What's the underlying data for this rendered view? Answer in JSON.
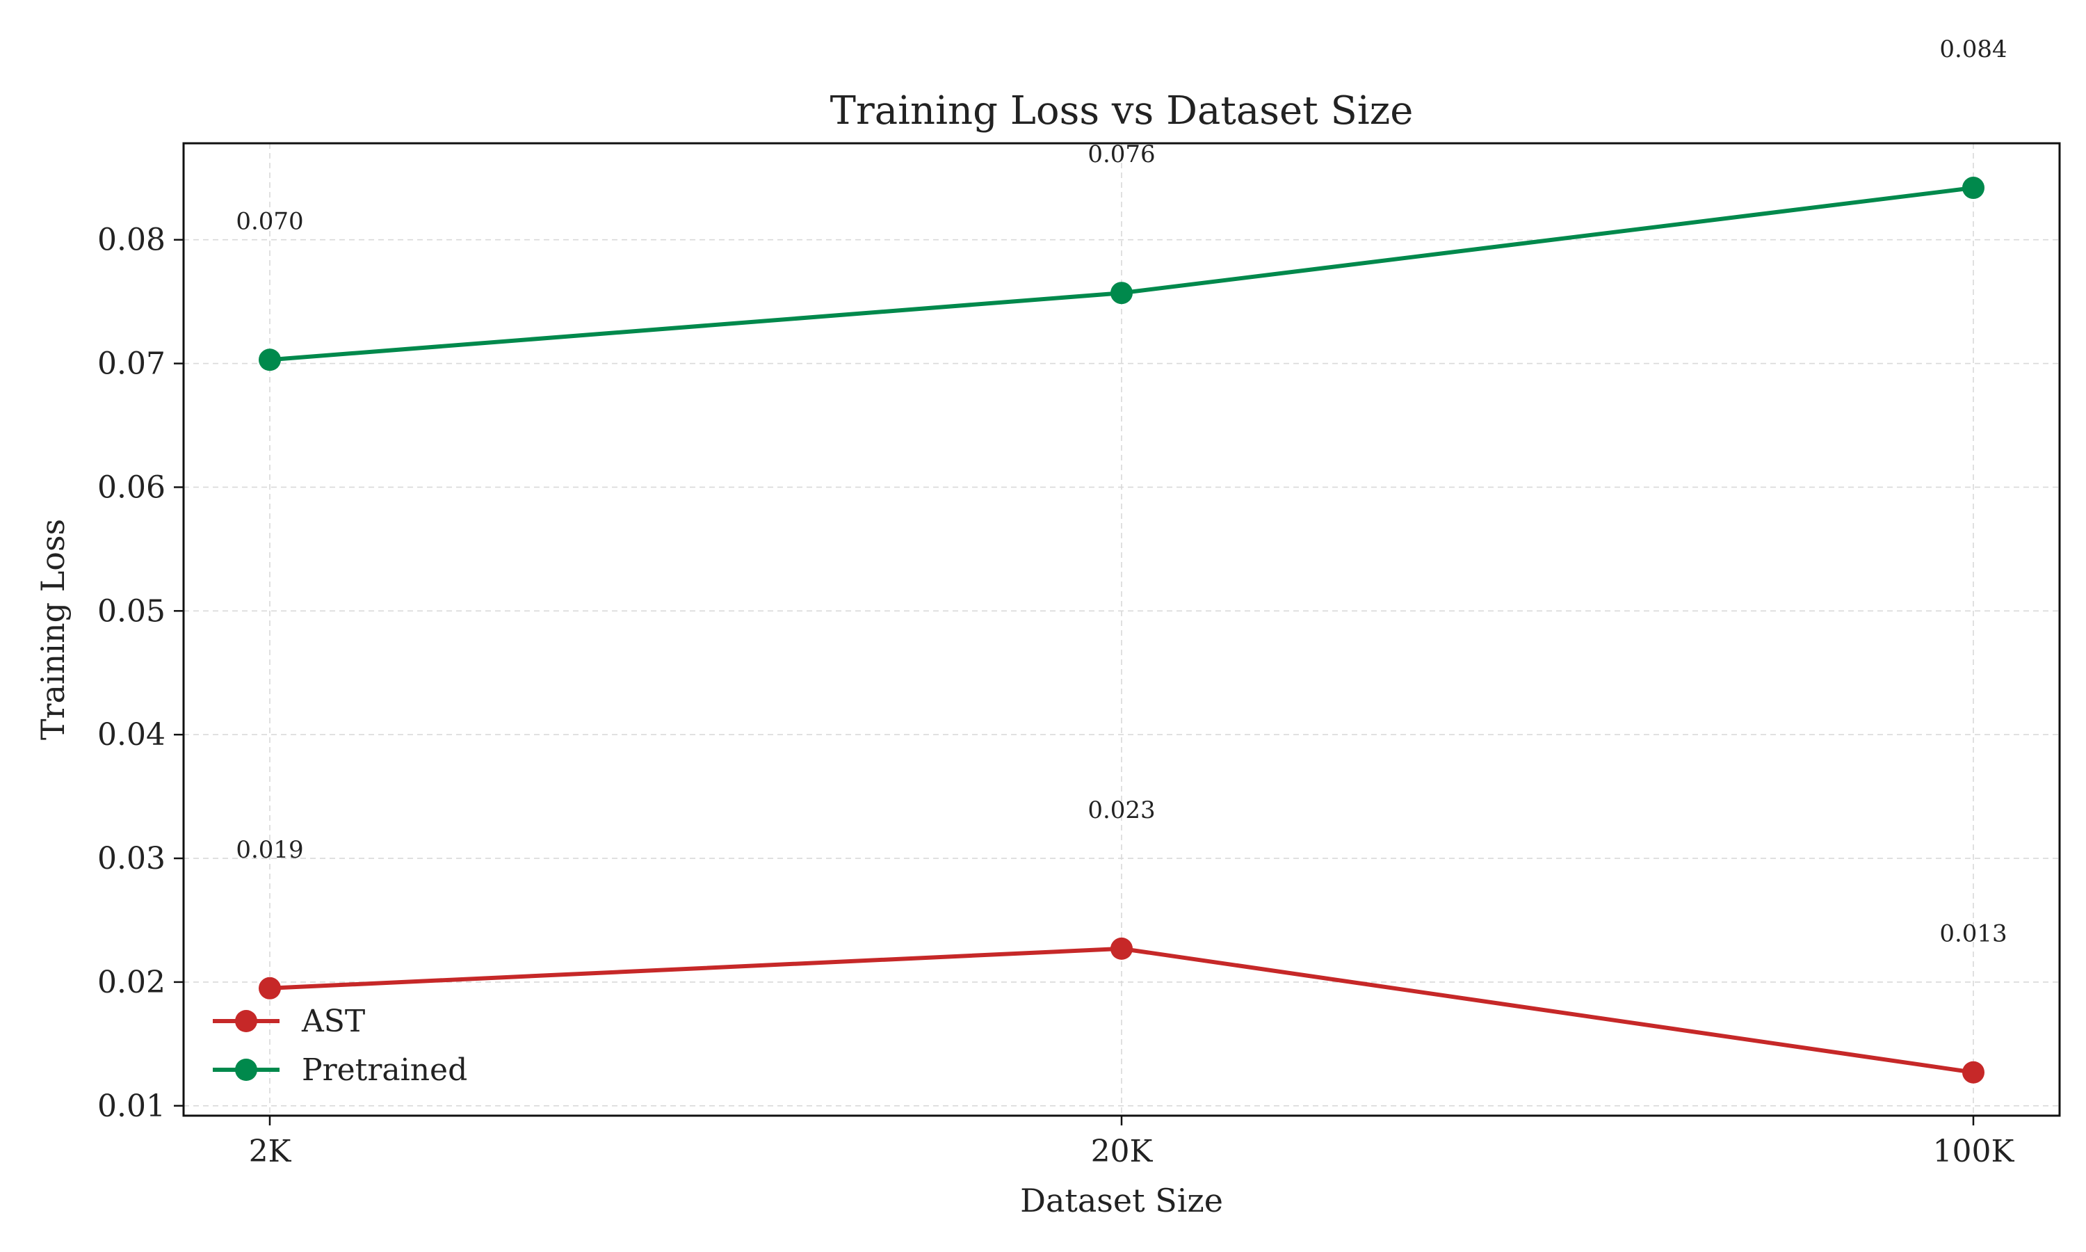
{
  "chart_data": {
    "type": "line",
    "title": "Training Loss vs Dataset Size",
    "xlabel": "Dataset Size",
    "ylabel": "Training Loss",
    "categories": [
      "2K",
      "20K",
      "100K"
    ],
    "ylim": [
      0.0092,
      0.0878
    ],
    "yticks": [
      0.01,
      0.02,
      0.03,
      0.04,
      0.05,
      0.06,
      0.07,
      0.08
    ],
    "ytick_labels": [
      "0.01",
      "0.02",
      "0.03",
      "0.04",
      "0.05",
      "0.06",
      "0.07",
      "0.08"
    ],
    "grid": true,
    "legend_position": "lower-left",
    "series": [
      {
        "name": "AST",
        "color": "#c62828",
        "values": [
          0.0195,
          0.0227,
          0.0127
        ],
        "labels": [
          "0.019",
          "0.023",
          "0.013"
        ]
      },
      {
        "name": "Pretrained",
        "color": "#00894c",
        "values": [
          0.0703,
          0.0757,
          0.0842
        ],
        "labels": [
          "0.070",
          "0.076",
          "0.084"
        ]
      }
    ]
  }
}
